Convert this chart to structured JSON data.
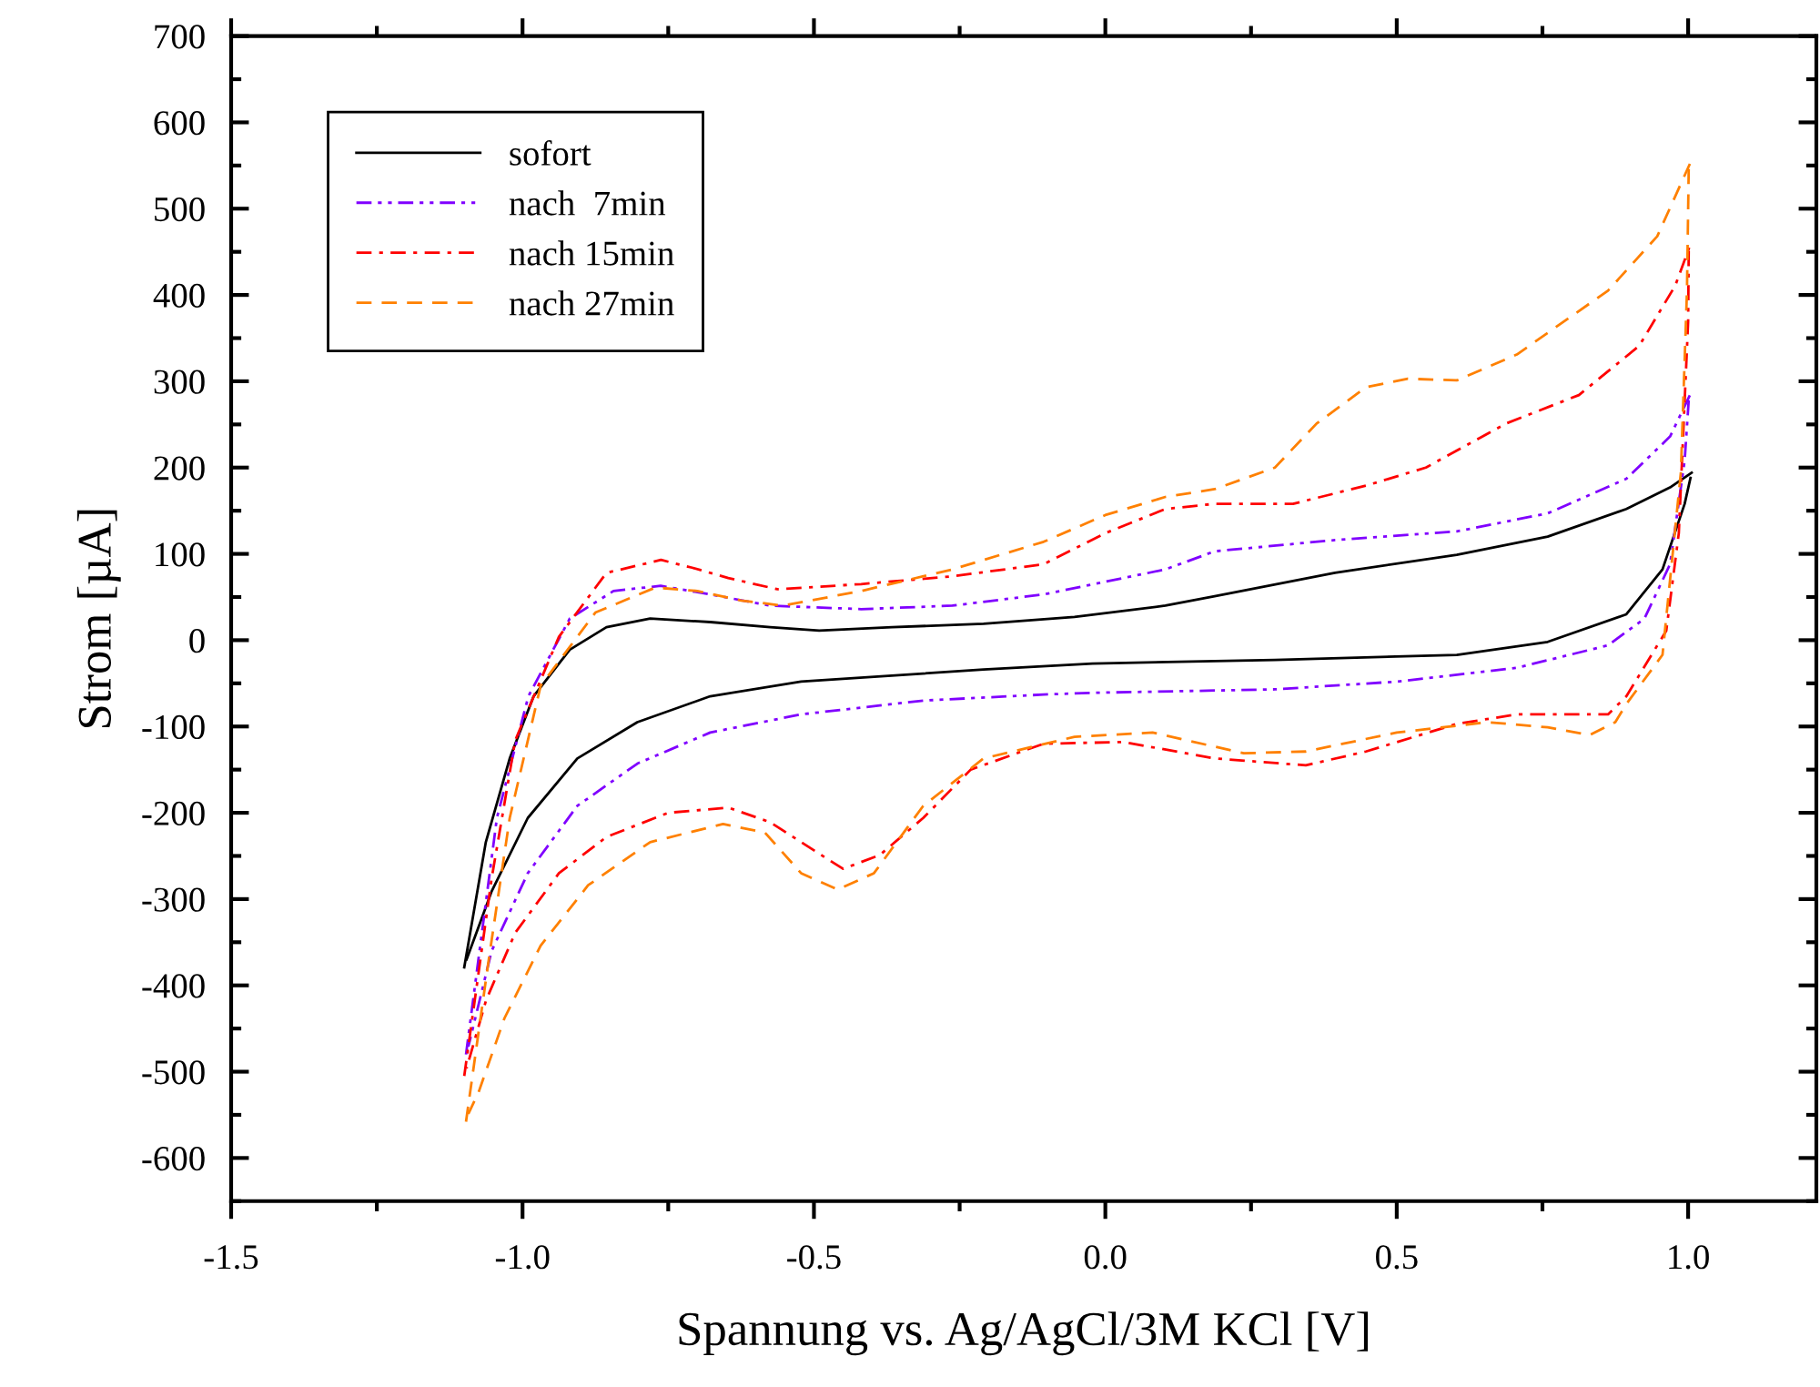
{
  "chart_data": {
    "type": "line",
    "xlabel": "Spannung vs. Ag/AgCl/3M KCl [V]",
    "ylabel": "Strom [µA]",
    "xlim": [
      -1.5,
      1.22
    ],
    "ylim": [
      -650,
      700
    ],
    "xticks": [
      {
        "value": -1.5,
        "label": "-1.5"
      },
      {
        "value": -1.0,
        "label": "-1.0"
      },
      {
        "value": -0.5,
        "label": "-0.5"
      },
      {
        "value": 0.0,
        "label": "0.0"
      },
      {
        "value": 0.5,
        "label": "0.5"
      },
      {
        "value": 1.0,
        "label": "1.0"
      }
    ],
    "yticks": [
      -600,
      -500,
      -400,
      -300,
      -200,
      -100,
      0,
      100,
      200,
      300,
      400,
      500,
      600,
      700
    ],
    "grid": false,
    "legend": "top left",
    "series": [
      {
        "name": "sofort",
        "color": "#000000",
        "line_style": "solid",
        "x": [
          -1.1,
          -1.063,
          -1.022,
          -0.981,
          -0.919,
          -0.856,
          -0.781,
          -0.678,
          -0.575,
          -0.491,
          -0.366,
          -0.209,
          -0.053,
          0.103,
          0.1875,
          0.394,
          0.603,
          0.759,
          0.894,
          0.969,
          1.006
        ],
        "values": [
          -379,
          -234,
          -137,
          -65,
          -11,
          15,
          25,
          21,
          15,
          11,
          15,
          19,
          27,
          40,
          51,
          78,
          99,
          120,
          152,
          177,
          194
        ]
      },
      {
        "color": "#000000",
        "line_style": "solid",
        "x": [
          1.004,
          0.994,
          0.956,
          0.894,
          0.759,
          0.603,
          0.291,
          -0.022,
          -0.209,
          -0.522,
          -0.678,
          -0.803,
          -0.906,
          -0.991,
          -1.053,
          -1.096
        ],
        "values": [
          188,
          158,
          82,
          30,
          -2,
          -17,
          -23,
          -27,
          -34,
          -48,
          -65,
          -95,
          -137,
          -206,
          -291,
          -370
        ]
      },
      {
        "name": "nach  7min",
        "color": "#8000ff",
        "line_style": "dashdotdot",
        "x": [
          -1.097,
          -1.044,
          -0.99,
          -0.919,
          -0.844,
          -0.763,
          -0.678,
          -0.575,
          -0.419,
          -0.2625,
          -0.106,
          0.103,
          0.1875,
          0.394,
          0.603,
          0.759,
          0.894,
          0.969,
          1.003
        ],
        "values": [
          -480,
          -206,
          -65,
          25,
          57,
          63,
          53,
          40,
          36,
          40,
          53,
          82,
          103,
          116,
          126,
          147,
          187,
          236,
          284
        ]
      },
      {
        "color": "#8000ff",
        "line_style": "dashdotdot",
        "x": [
          1.001,
          0.994,
          0.969,
          0.925,
          0.8625,
          0.706,
          0.5,
          0.291,
          -0.022,
          -0.106,
          -0.3125,
          -0.522,
          -0.678,
          -0.803,
          -0.906,
          -0.991,
          -1.053,
          -1.093
        ],
        "values": [
          278,
          208,
          88,
          25,
          -6,
          -32,
          -48,
          -57,
          -61,
          -63,
          -70,
          -86,
          -107,
          -143,
          -192,
          -270,
          -360,
          -471
        ]
      },
      {
        "name": "nach 15min",
        "color": "#ff0000",
        "line_style": "dashdot",
        "x": [
          -1.1,
          -1.053,
          -1.0125,
          -0.9375,
          -0.856,
          -0.7625,
          -0.709,
          -0.647,
          -0.5625,
          -0.419,
          -0.2625,
          -0.106,
          0.0,
          0.103,
          0.1875,
          0.322,
          0.447,
          0.55,
          0.6875,
          0.8125,
          0.916,
          0.978,
          1.003
        ],
        "values": [
          -505,
          -276,
          -116,
          4,
          78,
          93,
          84,
          72,
          59,
          65,
          74,
          88,
          124,
          152,
          158,
          158,
          179,
          200,
          251,
          284,
          341,
          411,
          457
        ]
      },
      {
        "color": "#ff0000",
        "line_style": "dashdot",
        "x": [
          1.001,
          1.0,
          0.984,
          0.9625,
          0.894,
          0.8625,
          0.706,
          0.603,
          0.447,
          0.344,
          0.1875,
          0.031,
          -0.106,
          -0.231,
          -0.3125,
          -0.387,
          -0.45,
          -0.522,
          -0.575,
          -0.647,
          -0.75,
          -0.856,
          -0.9375,
          -1.0125,
          -1.0625,
          -1.096
        ],
        "values": [
          451,
          369,
          124,
          11,
          -65,
          -86,
          -86,
          -97,
          -129,
          -145,
          -137,
          -118,
          -120,
          -150,
          -206,
          -249,
          -265,
          -234,
          -211,
          -194,
          -200,
          -228,
          -270,
          -339,
          -417,
          -496
        ]
      },
      {
        "name": "nach 27min",
        "color": "#ff8000",
        "line_style": "dashed",
        "x": [
          -1.097,
          -1.059,
          -1.022,
          -0.969,
          -0.875,
          -0.772,
          -0.7,
          -0.625,
          -0.553,
          -0.419,
          -0.2625,
          -0.106,
          0.0,
          0.103,
          0.1875,
          0.291,
          0.3625,
          0.447,
          0.519,
          0.603,
          0.706,
          0.8625,
          0.947,
          1.003
        ],
        "values": [
          -558,
          -375,
          -206,
          -53,
          32,
          61,
          57,
          46,
          40,
          57,
          82,
          114,
          145,
          166,
          175,
          200,
          251,
          293,
          303,
          301,
          331,
          405,
          468,
          552
        ]
      },
      {
        "color": "#ff8000",
        "line_style": "dashed",
        "x": [
          1.001,
          0.998,
          0.9875,
          0.956,
          0.894,
          0.875,
          0.831,
          0.759,
          0.656,
          0.5,
          0.344,
          0.2375,
          0.081,
          -0.053,
          -0.209,
          -0.3125,
          -0.397,
          -0.459,
          -0.522,
          -0.584,
          -0.656,
          -0.781,
          -0.8875,
          -0.969,
          -1.031,
          -1.075,
          -1.093
        ],
        "values": [
          546,
          405,
          194,
          -17,
          -74,
          -95,
          -110,
          -101,
          -95,
          -107,
          -129,
          -131,
          -107,
          -112,
          -137,
          -192,
          -270,
          -289,
          -270,
          -223,
          -213,
          -234,
          -284,
          -354,
          -438,
          -523,
          -549
        ]
      }
    ]
  }
}
